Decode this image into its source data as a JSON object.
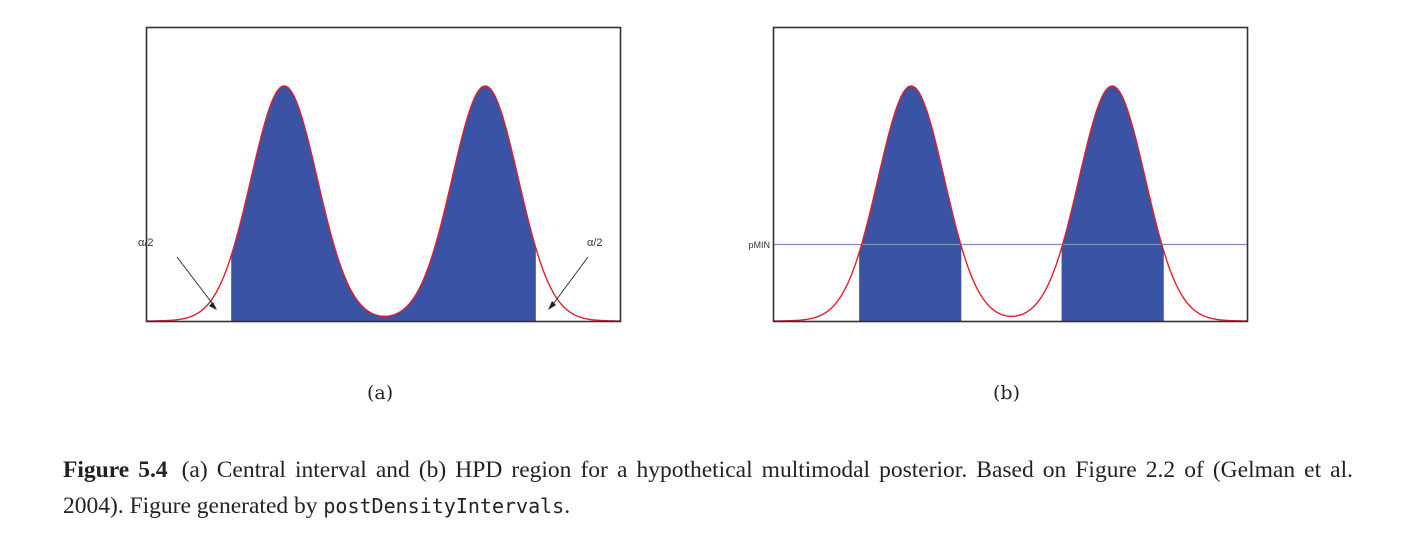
{
  "figure": {
    "panels": [
      {
        "id": "a",
        "label": "(a)",
        "title": "Central interval"
      },
      {
        "id": "b",
        "label": "(b)",
        "title": "HPD region"
      }
    ],
    "caption": {
      "figure_number": "Figure 5.4",
      "text": "(a) Central interval and (b) HPD region for a hypothetical multimodal posterior. Based on Figure 2.2 of (Gelman et al. 2004). Figure generated by ",
      "code": "postDensityIntervals",
      "end": "."
    }
  },
  "colors": {
    "curve": "#e0202a",
    "fill": "#3a53a4",
    "frame": "#333333",
    "pmin_line": "#8090c0",
    "arrow": "#222222"
  },
  "chart_data": [
    {
      "type": "area",
      "title": "(a) Central interval",
      "description": "Bimodal posterior density (mixture of two equal Gaussians); central interval shaded, leaving alpha/2 in each tail",
      "x_domain": [
        0,
        1
      ],
      "modes": [
        0.29,
        0.715
      ],
      "mode_sd": 0.07,
      "shaded_interval": [
        0.177,
        0.823
      ],
      "annotations": [
        {
          "text": "α/2",
          "position": "left tail",
          "arrow_to": [
            0.15,
            0.07
          ]
        },
        {
          "text": "α/2",
          "position": "right tail",
          "arrow_to": [
            0.85,
            0.07
          ]
        }
      ],
      "xlabel": "",
      "ylabel": "",
      "grid": false,
      "ticks": false
    },
    {
      "type": "area",
      "title": "(b) HPD region",
      "description": "Same bimodal posterior; HPD region = set where density > pMIN, consisting of two disjoint intervals",
      "x_domain": [
        0,
        1
      ],
      "modes": [
        0.29,
        0.715
      ],
      "mode_sd": 0.07,
      "threshold_label": "pMIN",
      "threshold_relative_height": 0.33,
      "shaded_intervals": [
        [
          0.179,
          0.396
        ],
        [
          0.607,
          0.825
        ]
      ],
      "xlabel": "",
      "ylabel": "",
      "grid": false,
      "ticks": false
    }
  ]
}
